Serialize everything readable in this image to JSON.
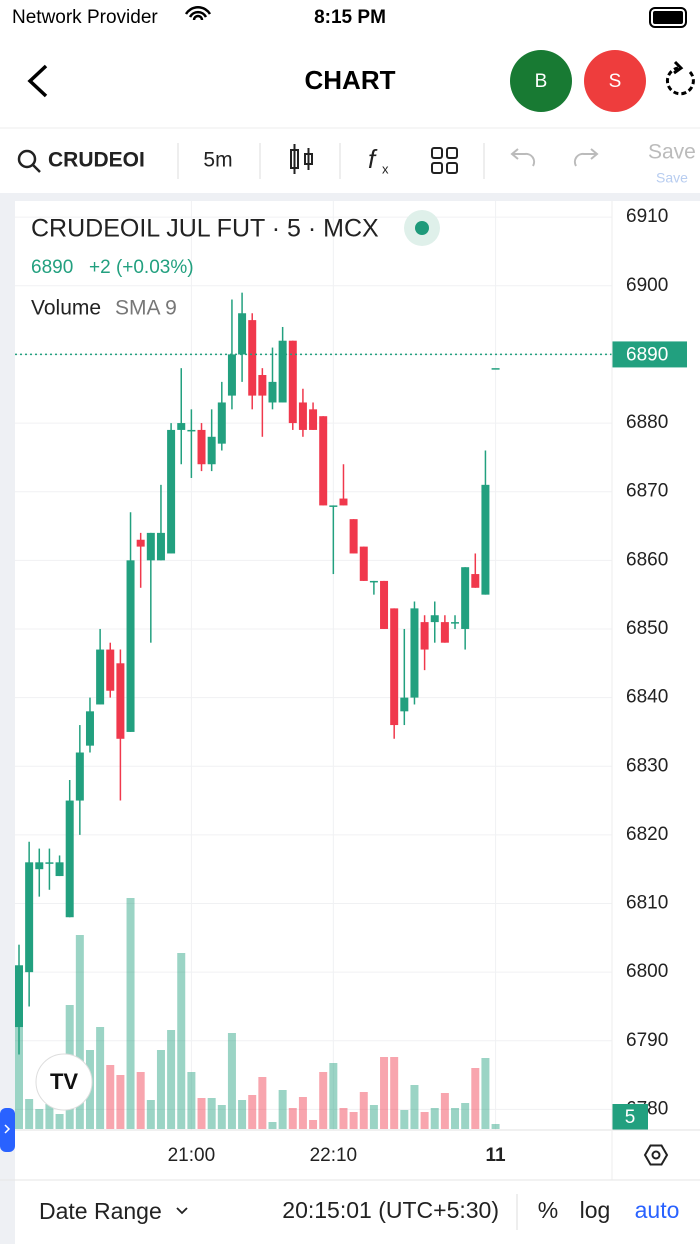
{
  "status": {
    "carrier": "Network Provider",
    "time": "8:15 PM"
  },
  "nav": {
    "title": "CHART",
    "buy": "B",
    "sell": "S"
  },
  "toolbar": {
    "symbol": "CRUDEOI",
    "interval": "5m",
    "save": "Save",
    "save_sub": "Save"
  },
  "legend": {
    "name": "CRUDEOIL JUL FUT · 5 · MCX",
    "price": "6890",
    "change": "+2 (+0.03%)",
    "volume": "Volume",
    "sma": "SMA 9"
  },
  "footer": {
    "date_range": "Date Range",
    "clock": "20:15:01 (UTC+5:30)",
    "percent": "%",
    "log": "log",
    "auto": "auto"
  },
  "chart_data": {
    "type": "candlestick",
    "categories": [
      null,
      null,
      null,
      null,
      null,
      null,
      null,
      null,
      null,
      null,
      null,
      null,
      null,
      null,
      null,
      null,
      null,
      "21:00",
      null,
      null,
      null,
      null,
      null,
      null,
      null,
      null,
      null,
      null,
      null,
      null,
      null,
      "22:10",
      null,
      null,
      null,
      null,
      null,
      null,
      null,
      null,
      null,
      null,
      null,
      null,
      null,
      null,
      null,
      "11"
    ],
    "open": [
      6792,
      6800,
      6815,
      6816,
      6814,
      6808,
      6825,
      6833,
      6839,
      6847,
      6845,
      6835,
      6863,
      6860,
      6860,
      6861,
      6879,
      6879,
      6879,
      6874,
      6877,
      6884,
      6890,
      6895,
      6887,
      6883,
      6883,
      6892,
      6883,
      6882,
      6881,
      6868,
      6869,
      6866,
      6862,
      6857,
      6857,
      6853,
      6838,
      6840,
      6851,
      6851,
      6851,
      6851,
      6850,
      6858,
      6855,
      6888
    ],
    "high": [
      6804,
      6819,
      6818,
      6818,
      6817,
      6828,
      6836,
      6840,
      6850,
      6848,
      6847,
      6867,
      6864,
      6864,
      6871,
      6880,
      6888,
      6882,
      6880,
      6882,
      6886,
      6898,
      6899,
      6896,
      6888,
      6891,
      6894,
      6892,
      6885,
      6883,
      6881,
      6868,
      6874,
      6866,
      6862,
      6857,
      6857,
      6853,
      6850,
      6854,
      6852,
      6854,
      6852,
      6852,
      6859,
      6861,
      6876,
      6888
    ],
    "low": [
      6788,
      6795,
      6811,
      6812,
      6814,
      6808,
      6820,
      6832,
      6839,
      6840,
      6825,
      6835,
      6856,
      6848,
      6860,
      6861,
      6874,
      6872,
      6873,
      6873,
      6876,
      6882,
      6886,
      6882,
      6878,
      6882,
      6883,
      6879,
      6878,
      6879,
      6868,
      6858,
      6868,
      6861,
      6857,
      6855,
      6850,
      6834,
      6836,
      6839,
      6844,
      6848,
      6848,
      6850,
      6847,
      6856,
      6855,
      6888
    ],
    "close": [
      6801,
      6816,
      6816,
      6816,
      6816,
      6825,
      6832,
      6838,
      6847,
      6841,
      6834,
      6860,
      6862,
      6864,
      6864,
      6879,
      6880,
      6879,
      6874,
      6878,
      6883,
      6890,
      6896,
      6884,
      6884,
      6886,
      6892,
      6880,
      6879,
      6879,
      6868,
      6868,
      6868,
      6861,
      6857,
      6857,
      6850,
      6836,
      6840,
      6853,
      6847,
      6852,
      6848,
      6851,
      6859,
      6856,
      6871,
      6888
    ],
    "volumes": [
      120,
      30,
      20,
      25,
      15,
      124,
      194,
      79,
      102,
      64,
      54,
      231,
      57,
      29,
      79,
      99,
      176,
      57,
      31,
      31,
      24,
      96,
      29,
      34,
      52,
      7,
      39,
      21,
      32,
      9,
      57,
      66,
      21,
      17,
      37,
      24,
      72,
      72,
      19,
      44,
      17,
      21,
      36,
      21,
      26,
      61,
      71,
      5
    ],
    "last_price": 6890,
    "ylim": [
      6777,
      6912.5
    ],
    "yticks": [
      6780,
      6790,
      6800,
      6810,
      6820,
      6830,
      6840,
      6850,
      6860,
      6870,
      6880,
      6890,
      6900,
      6910
    ],
    "up_color": "#22a07f",
    "down_color": "#f0384c",
    "grid": true
  }
}
